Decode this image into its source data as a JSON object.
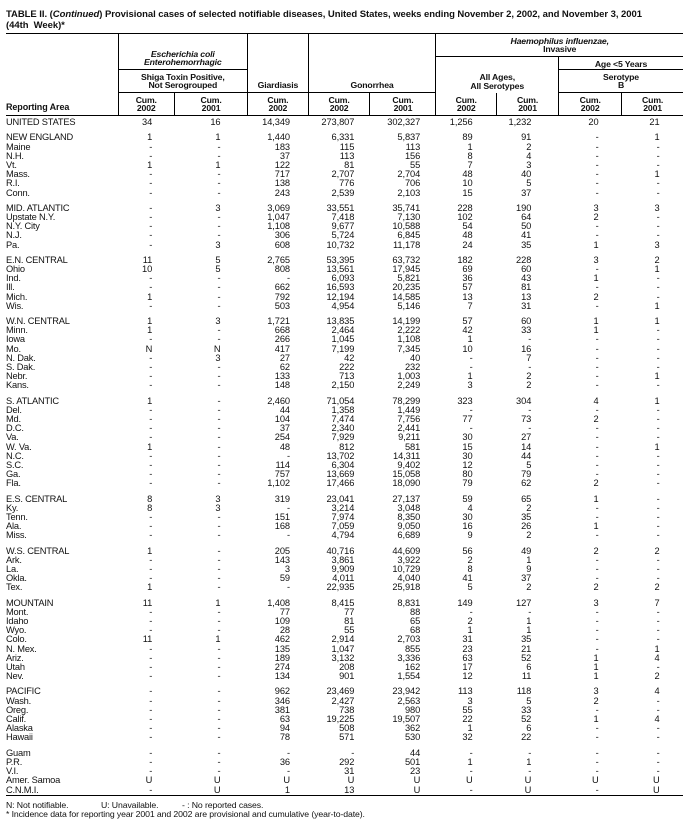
{
  "title": {
    "line1_prefix": "TABLE II. (",
    "line1_continued": "Continued",
    "line1_suffix": ") Provisional cases of selected notifiable diseases, United States, weeks ending November 2, 2002, and November 3, 2001",
    "line2": "(44th  Week)*"
  },
  "table": {
    "reporting_area_label": "Reporting Area",
    "groups": {
      "ecoli_title_line1": "Escherichia coli",
      "ecoli_title_line2": "Enterohemorrhagic",
      "ecoli_sub_line1": "Shiga Toxin Positive,",
      "ecoli_sub_line2": "Not Serogrouped",
      "giardiasis": "Giardiasis",
      "gonorrhea": "Gonorrhea",
      "haemophilus_title_italic": "Haemophilus influenzae,",
      "haemophilus_title_rest": "Invasive",
      "allages_line1": "All Ages,",
      "allages_line2": "All Serotypes",
      "age5": "Age <5 Years",
      "serotype_line1": "Serotype",
      "serotype_line2": "B"
    },
    "cum_label": "Cum.",
    "years": [
      "2002",
      "2001",
      "2002",
      "2002",
      "2001",
      "2002",
      "2001",
      "2002",
      "2001"
    ],
    "rows": [
      {
        "area": "UNITED STATES",
        "values": [
          "34",
          "16",
          "14,349",
          "273,807",
          "302,327",
          "1,256",
          "1,232",
          "20",
          "21"
        ],
        "gap_before": false
      },
      {
        "area": "NEW ENGLAND",
        "values": [
          "1",
          "1",
          "1,440",
          "6,331",
          "5,837",
          "89",
          "91",
          "-",
          "1"
        ],
        "gap_before": true
      },
      {
        "area": "Maine",
        "values": [
          "-",
          "-",
          "183",
          "115",
          "113",
          "1",
          "2",
          "-",
          "-"
        ],
        "gap_before": false
      },
      {
        "area": "N.H.",
        "values": [
          "-",
          "-",
          "37",
          "113",
          "156",
          "8",
          "4",
          "-",
          "-"
        ],
        "gap_before": false
      },
      {
        "area": "Vt.",
        "values": [
          "1",
          "1",
          "122",
          "81",
          "55",
          "7",
          "3",
          "-",
          "-"
        ],
        "gap_before": false
      },
      {
        "area": "Mass.",
        "values": [
          "-",
          "-",
          "717",
          "2,707",
          "2,704",
          "48",
          "40",
          "-",
          "1"
        ],
        "gap_before": false
      },
      {
        "area": "R.I.",
        "values": [
          "-",
          "-",
          "138",
          "776",
          "706",
          "10",
          "5",
          "-",
          "-"
        ],
        "gap_before": false
      },
      {
        "area": "Conn.",
        "values": [
          "-",
          "-",
          "243",
          "2,539",
          "2,103",
          "15",
          "37",
          "-",
          "-"
        ],
        "gap_before": false
      },
      {
        "area": "MID. ATLANTIC",
        "values": [
          "-",
          "3",
          "3,069",
          "33,551",
          "35,741",
          "228",
          "190",
          "3",
          "3"
        ],
        "gap_before": true
      },
      {
        "area": "Upstate N.Y.",
        "values": [
          "-",
          "-",
          "1,047",
          "7,418",
          "7,130",
          "102",
          "64",
          "2",
          "-"
        ],
        "gap_before": false
      },
      {
        "area": "N.Y. City",
        "values": [
          "-",
          "-",
          "1,108",
          "9,677",
          "10,588",
          "54",
          "50",
          "-",
          "-"
        ],
        "gap_before": false
      },
      {
        "area": "N.J.",
        "values": [
          "-",
          "-",
          "306",
          "5,724",
          "6,845",
          "48",
          "41",
          "-",
          "-"
        ],
        "gap_before": false
      },
      {
        "area": "Pa.",
        "values": [
          "-",
          "3",
          "608",
          "10,732",
          "11,178",
          "24",
          "35",
          "1",
          "3"
        ],
        "gap_before": false
      },
      {
        "area": "E.N. CENTRAL",
        "values": [
          "11",
          "5",
          "2,765",
          "53,395",
          "63,732",
          "182",
          "228",
          "3",
          "2"
        ],
        "gap_before": true
      },
      {
        "area": "Ohio",
        "values": [
          "10",
          "5",
          "808",
          "13,561",
          "17,945",
          "69",
          "60",
          "-",
          "1"
        ],
        "gap_before": false
      },
      {
        "area": "Ind.",
        "values": [
          "-",
          "-",
          "-",
          "6,093",
          "5,821",
          "36",
          "43",
          "1",
          "-"
        ],
        "gap_before": false
      },
      {
        "area": "Ill.",
        "values": [
          "-",
          "-",
          "662",
          "16,593",
          "20,235",
          "57",
          "81",
          "-",
          "-"
        ],
        "gap_before": false
      },
      {
        "area": "Mich.",
        "values": [
          "1",
          "-",
          "792",
          "12,194",
          "14,585",
          "13",
          "13",
          "2",
          "-"
        ],
        "gap_before": false
      },
      {
        "area": "Wis.",
        "values": [
          "-",
          "-",
          "503",
          "4,954",
          "5,146",
          "7",
          "31",
          "-",
          "1"
        ],
        "gap_before": false
      },
      {
        "area": "W.N. CENTRAL",
        "values": [
          "1",
          "3",
          "1,721",
          "13,835",
          "14,199",
          "57",
          "60",
          "1",
          "1"
        ],
        "gap_before": true
      },
      {
        "area": "Minn.",
        "values": [
          "1",
          "-",
          "668",
          "2,464",
          "2,222",
          "42",
          "33",
          "1",
          "-"
        ],
        "gap_before": false
      },
      {
        "area": "Iowa",
        "values": [
          "-",
          "-",
          "266",
          "1,045",
          "1,108",
          "1",
          "-",
          "-",
          "-"
        ],
        "gap_before": false
      },
      {
        "area": "Mo.",
        "values": [
          "N",
          "N",
          "417",
          "7,199",
          "7,345",
          "10",
          "16",
          "-",
          "-"
        ],
        "gap_before": false
      },
      {
        "area": "N. Dak.",
        "values": [
          "-",
          "3",
          "27",
          "42",
          "40",
          "-",
          "7",
          "-",
          "-"
        ],
        "gap_before": false
      },
      {
        "area": "S. Dak.",
        "values": [
          "-",
          "-",
          "62",
          "222",
          "232",
          "-",
          "-",
          "-",
          "-"
        ],
        "gap_before": false
      },
      {
        "area": "Nebr.",
        "values": [
          "-",
          "-",
          "133",
          "713",
          "1,003",
          "1",
          "2",
          "-",
          "1"
        ],
        "gap_before": false
      },
      {
        "area": "Kans.",
        "values": [
          "-",
          "-",
          "148",
          "2,150",
          "2,249",
          "3",
          "2",
          "-",
          "-"
        ],
        "gap_before": false
      },
      {
        "area": "S. ATLANTIC",
        "values": [
          "1",
          "-",
          "2,460",
          "71,054",
          "78,299",
          "323",
          "304",
          "4",
          "1"
        ],
        "gap_before": true
      },
      {
        "area": "Del.",
        "values": [
          "-",
          "-",
          "44",
          "1,358",
          "1,449",
          "-",
          "-",
          "-",
          "-"
        ],
        "gap_before": false
      },
      {
        "area": "Md.",
        "values": [
          "-",
          "-",
          "104",
          "7,474",
          "7,756",
          "77",
          "73",
          "2",
          "-"
        ],
        "gap_before": false
      },
      {
        "area": "D.C.",
        "values": [
          "-",
          "-",
          "37",
          "2,340",
          "2,441",
          "-",
          "-",
          "-",
          "-"
        ],
        "gap_before": false
      },
      {
        "area": "Va.",
        "values": [
          "-",
          "-",
          "254",
          "7,929",
          "9,211",
          "30",
          "27",
          "-",
          "-"
        ],
        "gap_before": false
      },
      {
        "area": "W. Va.",
        "values": [
          "1",
          "-",
          "48",
          "812",
          "581",
          "15",
          "14",
          "-",
          "1"
        ],
        "gap_before": false
      },
      {
        "area": "N.C.",
        "values": [
          "-",
          "-",
          "-",
          "13,702",
          "14,311",
          "30",
          "44",
          "-",
          "-"
        ],
        "gap_before": false
      },
      {
        "area": "S.C.",
        "values": [
          "-",
          "-",
          "114",
          "6,304",
          "9,402",
          "12",
          "5",
          "-",
          "-"
        ],
        "gap_before": false
      },
      {
        "area": "Ga.",
        "values": [
          "-",
          "-",
          "757",
          "13,669",
          "15,058",
          "80",
          "79",
          "-",
          "-"
        ],
        "gap_before": false
      },
      {
        "area": "Fla.",
        "values": [
          "-",
          "-",
          "1,102",
          "17,466",
          "18,090",
          "79",
          "62",
          "2",
          "-"
        ],
        "gap_before": false
      },
      {
        "area": "E.S. CENTRAL",
        "values": [
          "8",
          "3",
          "319",
          "23,041",
          "27,137",
          "59",
          "65",
          "1",
          "-"
        ],
        "gap_before": true
      },
      {
        "area": "Ky.",
        "values": [
          "8",
          "3",
          "-",
          "3,214",
          "3,048",
          "4",
          "2",
          "-",
          "-"
        ],
        "gap_before": false
      },
      {
        "area": "Tenn.",
        "values": [
          "-",
          "-",
          "151",
          "7,974",
          "8,350",
          "30",
          "35",
          "-",
          "-"
        ],
        "gap_before": false
      },
      {
        "area": "Ala.",
        "values": [
          "-",
          "-",
          "168",
          "7,059",
          "9,050",
          "16",
          "26",
          "1",
          "-"
        ],
        "gap_before": false
      },
      {
        "area": "Miss.",
        "values": [
          "-",
          "-",
          "-",
          "4,794",
          "6,689",
          "9",
          "2",
          "-",
          "-"
        ],
        "gap_before": false
      },
      {
        "area": "W.S. CENTRAL",
        "values": [
          "1",
          "-",
          "205",
          "40,716",
          "44,609",
          "56",
          "49",
          "2",
          "2"
        ],
        "gap_before": true
      },
      {
        "area": "Ark.",
        "values": [
          "-",
          "-",
          "143",
          "3,861",
          "3,922",
          "2",
          "1",
          "-",
          "-"
        ],
        "gap_before": false
      },
      {
        "area": "La.",
        "values": [
          "-",
          "-",
          "3",
          "9,909",
          "10,729",
          "8",
          "9",
          "-",
          "-"
        ],
        "gap_before": false
      },
      {
        "area": "Okla.",
        "values": [
          "-",
          "-",
          "59",
          "4,011",
          "4,040",
          "41",
          "37",
          "-",
          "-"
        ],
        "gap_before": false
      },
      {
        "area": "Tex.",
        "values": [
          "1",
          "-",
          "-",
          "22,935",
          "25,918",
          "5",
          "2",
          "2",
          "2"
        ],
        "gap_before": false
      },
      {
        "area": "MOUNTAIN",
        "values": [
          "11",
          "1",
          "1,408",
          "8,415",
          "8,831",
          "149",
          "127",
          "3",
          "7"
        ],
        "gap_before": true
      },
      {
        "area": "Mont.",
        "values": [
          "-",
          "-",
          "77",
          "77",
          "88",
          "-",
          "-",
          "-",
          "-"
        ],
        "gap_before": false
      },
      {
        "area": "Idaho",
        "values": [
          "-",
          "-",
          "109",
          "81",
          "65",
          "2",
          "1",
          "-",
          "-"
        ],
        "gap_before": false
      },
      {
        "area": "Wyo.",
        "values": [
          "-",
          "-",
          "28",
          "55",
          "68",
          "1",
          "1",
          "-",
          "-"
        ],
        "gap_before": false
      },
      {
        "area": "Colo.",
        "values": [
          "11",
          "1",
          "462",
          "2,914",
          "2,703",
          "31",
          "35",
          "-",
          "-"
        ],
        "gap_before": false
      },
      {
        "area": "N. Mex.",
        "values": [
          "-",
          "-",
          "135",
          "1,047",
          "855",
          "23",
          "21",
          "-",
          "1"
        ],
        "gap_before": false
      },
      {
        "area": "Ariz.",
        "values": [
          "-",
          "-",
          "189",
          "3,132",
          "3,336",
          "63",
          "52",
          "1",
          "4"
        ],
        "gap_before": false
      },
      {
        "area": "Utah",
        "values": [
          "-",
          "-",
          "274",
          "208",
          "162",
          "17",
          "6",
          "1",
          "-"
        ],
        "gap_before": false
      },
      {
        "area": "Nev.",
        "values": [
          "-",
          "-",
          "134",
          "901",
          "1,554",
          "12",
          "11",
          "1",
          "2"
        ],
        "gap_before": false
      },
      {
        "area": "PACIFIC",
        "values": [
          "-",
          "-",
          "962",
          "23,469",
          "23,942",
          "113",
          "118",
          "3",
          "4"
        ],
        "gap_before": true
      },
      {
        "area": "Wash.",
        "values": [
          "-",
          "-",
          "346",
          "2,427",
          "2,563",
          "3",
          "5",
          "2",
          "-"
        ],
        "gap_before": false
      },
      {
        "area": "Oreg.",
        "values": [
          "-",
          "-",
          "381",
          "738",
          "980",
          "55",
          "33",
          "-",
          "-"
        ],
        "gap_before": false
      },
      {
        "area": "Calif.",
        "values": [
          "-",
          "-",
          "63",
          "19,225",
          "19,507",
          "22",
          "52",
          "1",
          "4"
        ],
        "gap_before": false
      },
      {
        "area": "Alaska",
        "values": [
          "-",
          "-",
          "94",
          "508",
          "362",
          "1",
          "6",
          "-",
          "-"
        ],
        "gap_before": false
      },
      {
        "area": "Hawaii",
        "values": [
          "-",
          "-",
          "78",
          "571",
          "530",
          "32",
          "22",
          "-",
          "-"
        ],
        "gap_before": false
      },
      {
        "area": "Guam",
        "values": [
          "-",
          "-",
          "-",
          "-",
          "44",
          "-",
          "-",
          "-",
          "-"
        ],
        "gap_before": true
      },
      {
        "area": "P.R.",
        "values": [
          "-",
          "-",
          "36",
          "292",
          "501",
          "1",
          "1",
          "-",
          "-"
        ],
        "gap_before": false
      },
      {
        "area": "V.I.",
        "values": [
          "-",
          "-",
          "-",
          "31",
          "23",
          "-",
          "-",
          "-",
          "-"
        ],
        "gap_before": false
      },
      {
        "area": "Amer. Samoa",
        "values": [
          "U",
          "U",
          "U",
          "U",
          "U",
          "U",
          "U",
          "U",
          "U"
        ],
        "gap_before": false
      },
      {
        "area": "C.N.M.I.",
        "values": [
          "-",
          "U",
          "1",
          "13",
          "U",
          "-",
          "U",
          "-",
          "U"
        ],
        "gap_before": false
      }
    ]
  },
  "footnotes": {
    "n": "N: Not notifiable.",
    "u": "U: Unavailable.",
    "dash": "- : No reported cases.",
    "incidence": "* Incidence data for reporting year 2001 and 2002 are provisional and cumulative (year-to-date)."
  }
}
